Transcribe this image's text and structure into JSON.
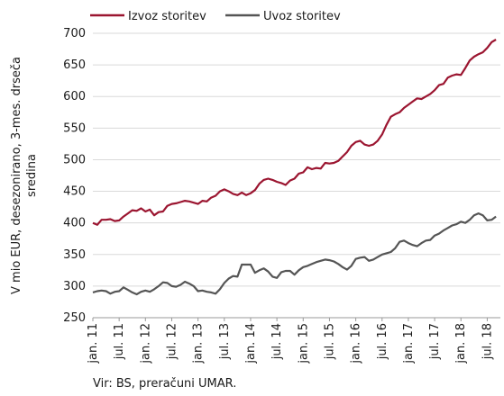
{
  "chart_data": {
    "type": "line",
    "ylabel": [
      "V mio EUR, desezonirano, 3-mes. drseča",
      "sredina"
    ],
    "source": "Vir: BS, preračuni UMAR.",
    "categories": [
      "jan. 11",
      null,
      null,
      null,
      null,
      null,
      "jul. 11",
      null,
      null,
      null,
      null,
      null,
      "jan. 12",
      null,
      null,
      null,
      null,
      null,
      "jul. 12",
      null,
      null,
      null,
      null,
      null,
      "jan. 13",
      null,
      null,
      null,
      null,
      null,
      "jul. 13",
      null,
      null,
      null,
      null,
      null,
      "jan. 14",
      null,
      null,
      null,
      null,
      null,
      "jul. 14",
      null,
      null,
      null,
      null,
      null,
      "jan. 15",
      null,
      null,
      null,
      null,
      null,
      "jul. 15",
      null,
      null,
      null,
      null,
      null,
      "jan. 16",
      null,
      null,
      null,
      null,
      null,
      "jul. 16",
      null,
      null,
      null,
      null,
      null,
      "jan. 17",
      null,
      null,
      null,
      null,
      null,
      "jul. 17",
      null,
      null,
      null,
      null,
      null,
      "jan. 18",
      null,
      null,
      null,
      null,
      null,
      "jul. 18",
      null,
      null
    ],
    "series": [
      {
        "name": "Izvoz storitev",
        "color": "#9b1530",
        "values": [
          400,
          397,
          405,
          405,
          406,
          403,
          404,
          410,
          415,
          420,
          419,
          423,
          418,
          421,
          412,
          417,
          418,
          427,
          430,
          431,
          433,
          435,
          434,
          432,
          430,
          435,
          434,
          440,
          443,
          450,
          453,
          450,
          446,
          444,
          448,
          444,
          447,
          452,
          462,
          468,
          470,
          468,
          465,
          463,
          460,
          467,
          470,
          478,
          480,
          488,
          485,
          487,
          486,
          495,
          494,
          495,
          498,
          505,
          512,
          522,
          528,
          530,
          524,
          522,
          524,
          530,
          540,
          555,
          568,
          572,
          575,
          582,
          587,
          592,
          597,
          596,
          600,
          604,
          610,
          618,
          620,
          630,
          633,
          635,
          634,
          645,
          657,
          663,
          667,
          670,
          677,
          686,
          690
        ]
      },
      {
        "name": "Uvoz storitev",
        "color": "#555555",
        "values": [
          290,
          292,
          293,
          292,
          288,
          291,
          292,
          298,
          294,
          290,
          287,
          291,
          293,
          291,
          295,
          300,
          306,
          305,
          300,
          299,
          302,
          307,
          304,
          300,
          292,
          293,
          291,
          290,
          288,
          295,
          305,
          312,
          316,
          315,
          334,
          334,
          334,
          321,
          325,
          328,
          323,
          315,
          313,
          322,
          324,
          324,
          318,
          325,
          330,
          332,
          335,
          338,
          340,
          342,
          341,
          339,
          335,
          330,
          326,
          332,
          343,
          345,
          346,
          340,
          342,
          346,
          350,
          352,
          354,
          360,
          370,
          372,
          368,
          365,
          363,
          368,
          372,
          373,
          380,
          383,
          388,
          392,
          396,
          398,
          402,
          400,
          405,
          412,
          415,
          412,
          404,
          405,
          410
        ]
      }
    ],
    "ylim": [
      250,
      700
    ],
    "yticks": [
      250,
      300,
      350,
      400,
      450,
      500,
      550,
      600,
      650,
      700
    ],
    "grid": true
  }
}
